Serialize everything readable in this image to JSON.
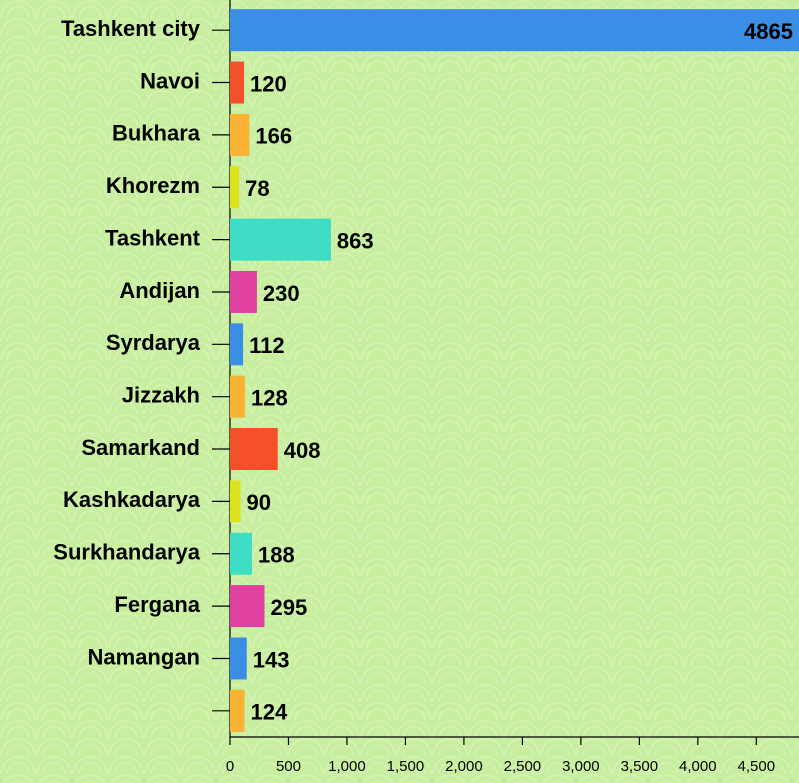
{
  "chart_data": {
    "type": "bar",
    "orientation": "horizontal",
    "categories": [
      "Tashkent city",
      "Navoi",
      "Bukhara",
      "Khorezm",
      "Tashkent",
      "Andijan",
      "Syrdarya",
      "Jizzakh",
      "Samarkand",
      "Kashkadarya",
      "Surkhandarya",
      "Fergana",
      "Namangan",
      null
    ],
    "values": [
      4865,
      120,
      166,
      78,
      863,
      230,
      112,
      128,
      408,
      90,
      188,
      295,
      143,
      124
    ],
    "colors": [
      "#3a8ee6",
      "#f4502a",
      "#f9b233",
      "#dde21f",
      "#3fdcc6",
      "#e040a0",
      "#3a8ee6",
      "#f9b233",
      "#f4502a",
      "#dde21f",
      "#3fdcc6",
      "#e040a0",
      "#3a8ee6",
      "#f9b233"
    ],
    "xlim": [
      0,
      4865
    ],
    "xticks": [
      0,
      500,
      {
        "value": 1000,
        "label": "1,000"
      },
      {
        "value": 1500,
        "label": "1,500"
      },
      {
        "value": 2000,
        "label": "2,000"
      },
      {
        "value": 2500,
        "label": "2,500"
      },
      {
        "value": 3000,
        "label": "3,000"
      },
      {
        "value": 3500,
        "label": "3,500"
      },
      {
        "value": 4000,
        "label": "4,000"
      },
      {
        "value": 4500,
        "label": "4,500"
      }
    ]
  }
}
